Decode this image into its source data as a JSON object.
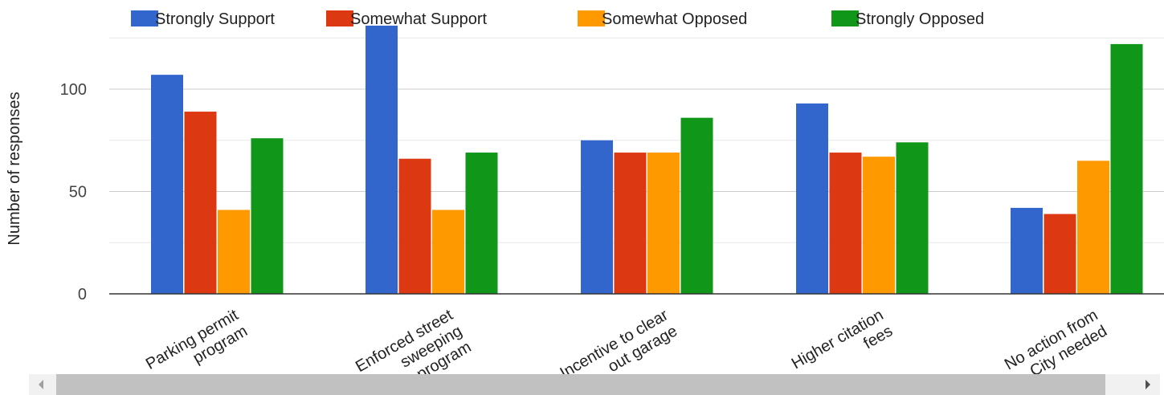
{
  "chart_data": {
    "type": "bar",
    "title": "",
    "xlabel": "",
    "ylabel": "Number of responses",
    "ylim": [
      0,
      135
    ],
    "yticks": [
      0,
      50,
      100
    ],
    "grid": true,
    "legend_position": "top",
    "categories": [
      [
        "Parking permit",
        "program"
      ],
      [
        "Enforced street",
        "sweeping",
        "program"
      ],
      [
        "Incentive to clear",
        "out garage"
      ],
      [
        "Higher citation",
        "fees"
      ],
      [
        "No action from",
        "City needed"
      ]
    ],
    "series": [
      {
        "name": "Strongly Support",
        "color": "#3366cc",
        "values": [
          107,
          131,
          75,
          93,
          42
        ]
      },
      {
        "name": "Somewhat Support",
        "color": "#dc3912",
        "values": [
          89,
          66,
          69,
          69,
          39
        ]
      },
      {
        "name": "Somewhat Opposed",
        "color": "#ff9900",
        "values": [
          41,
          41,
          69,
          67,
          65
        ]
      },
      {
        "name": "Strongly Opposed",
        "color": "#109618",
        "values": [
          76,
          69,
          86,
          74,
          122
        ]
      }
    ]
  },
  "scrollbar": {
    "left_arrow_icon": "triangle-left-icon",
    "right_arrow_icon": "triangle-right-icon"
  }
}
